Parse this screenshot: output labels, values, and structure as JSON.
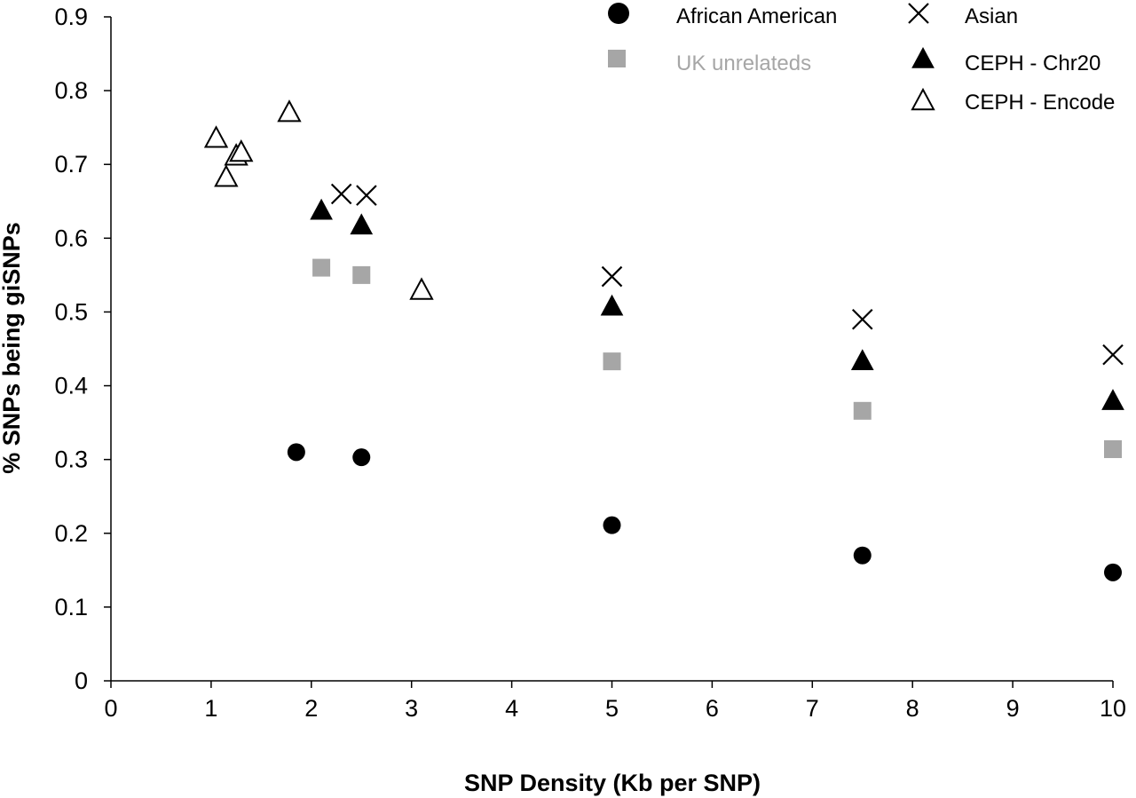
{
  "chart_data": {
    "type": "scatter",
    "xlabel": "SNP Density (Kb per SNP)",
    "ylabel": "% SNPs being giSNPs",
    "xlim": [
      0,
      10
    ],
    "ylim": [
      0,
      0.9
    ],
    "x_ticks": [
      "0",
      "1",
      "2",
      "3",
      "4",
      "5",
      "6",
      "7",
      "8",
      "9",
      "10"
    ],
    "y_ticks": [
      "0",
      "0.1",
      "0.2",
      "0.3",
      "0.4",
      "0.5",
      "0.6",
      "0.7",
      "0.8",
      "0.9"
    ],
    "grid": false,
    "legend_position": "top-right",
    "series": [
      {
        "name": "African American",
        "marker": "circle",
        "color": "#000000",
        "points": [
          [
            1.85,
            0.31
          ],
          [
            2.5,
            0.303
          ],
          [
            5,
            0.211
          ],
          [
            7.5,
            0.17
          ],
          [
            10,
            0.147
          ]
        ]
      },
      {
        "name": "Asian",
        "marker": "x",
        "color": "#000000",
        "points": [
          [
            2.3,
            0.66
          ],
          [
            2.55,
            0.658
          ],
          [
            5,
            0.548
          ],
          [
            7.5,
            0.49
          ],
          [
            10,
            0.442
          ]
        ]
      },
      {
        "name": "UK unrelateds",
        "marker": "square",
        "color": "#a6a6a6",
        "points": [
          [
            2.1,
            0.56
          ],
          [
            2.5,
            0.55
          ],
          [
            5,
            0.433
          ],
          [
            7.5,
            0.366
          ],
          [
            10,
            0.314
          ]
        ]
      },
      {
        "name": "CEPH - Chr20",
        "marker": "triangle-filled",
        "color": "#000000",
        "points": [
          [
            2.1,
            0.638
          ],
          [
            2.5,
            0.618
          ],
          [
            5,
            0.508
          ],
          [
            7.5,
            0.434
          ],
          [
            10,
            0.38
          ]
        ]
      },
      {
        "name": "CEPH - Encode",
        "marker": "triangle-open",
        "color": "#000000",
        "points": [
          [
            1.05,
            0.736
          ],
          [
            1.15,
            0.683
          ],
          [
            1.25,
            0.712
          ],
          [
            1.3,
            0.717
          ],
          [
            1.78,
            0.771
          ],
          [
            3.1,
            0.53
          ]
        ]
      }
    ]
  }
}
